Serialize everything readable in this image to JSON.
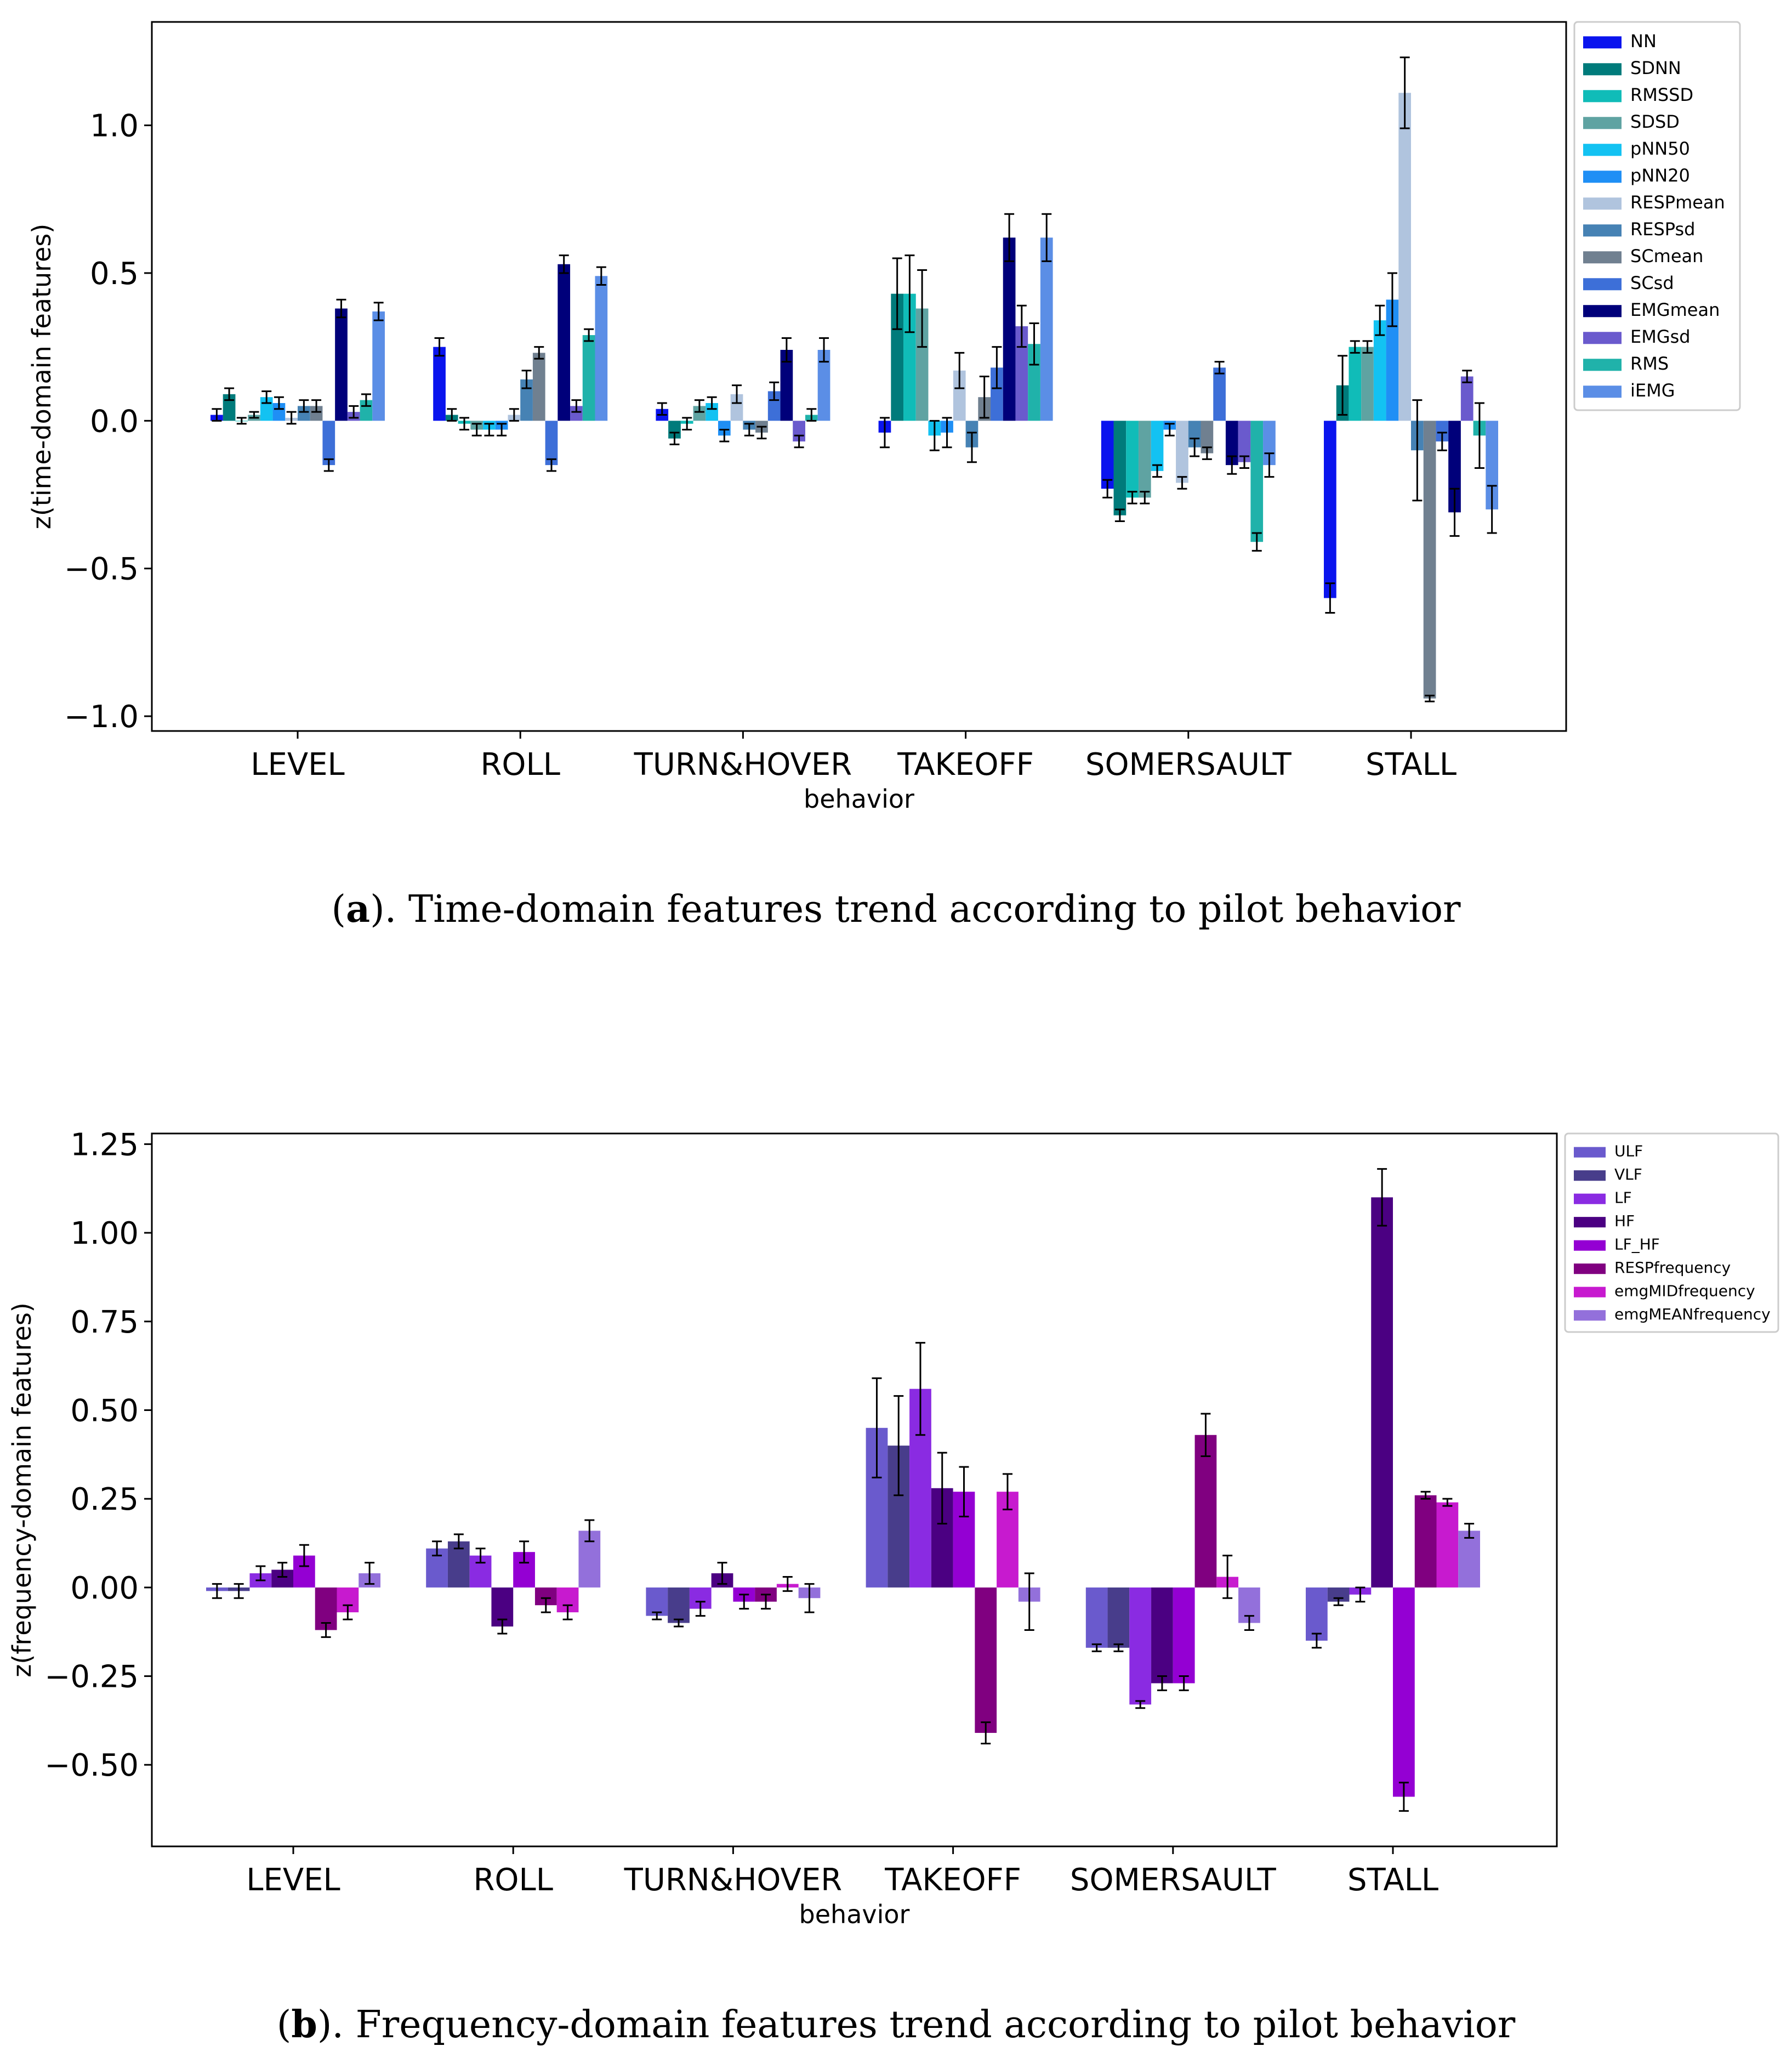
{
  "figures": {
    "a": {
      "label": "a",
      "caption": "). Time-domain features trend according to pilot behavior"
    },
    "b": {
      "label": "b",
      "caption": "). Frequency-domain features trend according to pilot behavior"
    }
  },
  "chart_data": [
    {
      "type": "bar",
      "title": "",
      "xlabel": "behavior",
      "ylabel": "z(time-domain features)",
      "ylim": [
        -1.05,
        1.35
      ],
      "yticks": [
        -1.0,
        -0.5,
        0.0,
        0.5,
        1.0
      ],
      "ytick_labels": [
        "−1.0",
        "−0.5",
        "0.0",
        "0.5",
        "1.0"
      ],
      "legend_position": "outside-right",
      "categories": [
        "LEVEL",
        "ROLL",
        "TURN&HOVER",
        "TAKEOFF",
        "SOMERSAULT",
        "STALL"
      ],
      "series": [
        {
          "name": "NN",
          "color": "#0a14ee",
          "values": [
            0.02,
            0.25,
            0.04,
            -0.04,
            -0.23,
            -0.6
          ],
          "errors": [
            0.02,
            0.03,
            0.02,
            0.05,
            0.03,
            0.05
          ]
        },
        {
          "name": "SDNN",
          "color": "#007b7b",
          "values": [
            0.09,
            0.02,
            -0.06,
            0.43,
            -0.32,
            0.12
          ],
          "errors": [
            0.02,
            0.02,
            0.02,
            0.12,
            0.02,
            0.1
          ]
        },
        {
          "name": "RMSSD",
          "color": "#10bcb8",
          "values": [
            0.0,
            -0.01,
            -0.01,
            0.43,
            -0.26,
            0.25
          ],
          "errors": [
            0.01,
            0.02,
            0.02,
            0.13,
            0.02,
            0.02
          ]
        },
        {
          "name": "SDSD",
          "color": "#5fa3a2",
          "values": [
            0.02,
            -0.03,
            0.05,
            0.38,
            -0.26,
            0.25
          ],
          "errors": [
            0.01,
            0.02,
            0.02,
            0.13,
            0.02,
            0.02
          ]
        },
        {
          "name": "pNN50",
          "color": "#13c2f2",
          "values": [
            0.08,
            -0.03,
            0.06,
            -0.05,
            -0.17,
            0.34
          ],
          "errors": [
            0.02,
            0.02,
            0.02,
            0.05,
            0.02,
            0.05
          ]
        },
        {
          "name": "pNN20",
          "color": "#1f8ff5",
          "values": [
            0.06,
            -0.03,
            -0.05,
            -0.04,
            -0.03,
            0.41
          ],
          "errors": [
            0.02,
            0.02,
            0.02,
            0.05,
            0.02,
            0.09
          ]
        },
        {
          "name": "RESPmean",
          "color": "#b0c4de",
          "values": [
            0.01,
            0.02,
            0.09,
            0.17,
            -0.21,
            1.11
          ],
          "errors": [
            0.02,
            0.02,
            0.03,
            0.06,
            0.02,
            0.12
          ]
        },
        {
          "name": "RESPsd",
          "color": "#4682b4",
          "values": [
            0.05,
            0.14,
            -0.03,
            -0.09,
            -0.09,
            -0.1
          ],
          "errors": [
            0.02,
            0.03,
            0.02,
            0.05,
            0.03,
            0.17
          ]
        },
        {
          "name": "SCmean",
          "color": "#708090",
          "values": [
            0.05,
            0.23,
            -0.04,
            0.08,
            -0.11,
            -0.94
          ],
          "errors": [
            0.02,
            0.02,
            0.02,
            0.07,
            0.02,
            0.01
          ]
        },
        {
          "name": "SCsd",
          "color": "#3d6fd8",
          "values": [
            -0.15,
            -0.15,
            0.1,
            0.18,
            0.18,
            -0.07
          ],
          "errors": [
            0.02,
            0.02,
            0.03,
            0.07,
            0.02,
            0.03
          ]
        },
        {
          "name": "EMGmean",
          "color": "#00007a",
          "values": [
            0.38,
            0.53,
            0.24,
            0.62,
            -0.15,
            -0.31
          ],
          "errors": [
            0.03,
            0.03,
            0.04,
            0.08,
            0.03,
            0.08
          ]
        },
        {
          "name": "EMGsd",
          "color": "#6a5acd",
          "values": [
            0.03,
            0.05,
            -0.07,
            0.32,
            -0.14,
            0.15
          ],
          "errors": [
            0.02,
            0.02,
            0.02,
            0.07,
            0.02,
            0.02
          ]
        },
        {
          "name": "RMS",
          "color": "#20b2aa",
          "values": [
            0.07,
            0.29,
            0.02,
            0.26,
            -0.41,
            -0.05
          ],
          "errors": [
            0.02,
            0.02,
            0.02,
            0.07,
            0.03,
            0.11
          ]
        },
        {
          "name": "iEMG",
          "color": "#5b8ee6",
          "values": [
            0.37,
            0.49,
            0.24,
            0.62,
            -0.15,
            -0.3
          ],
          "errors": [
            0.03,
            0.03,
            0.04,
            0.08,
            0.04,
            0.08
          ]
        }
      ]
    },
    {
      "type": "bar",
      "title": "",
      "xlabel": "behavior",
      "ylabel": "z(frequency-domain features)",
      "ylim": [
        -0.73,
        1.28
      ],
      "yticks": [
        -0.5,
        -0.25,
        0.0,
        0.25,
        0.5,
        0.75,
        1.0,
        1.25
      ],
      "ytick_labels": [
        "−0.50",
        "−0.25",
        "0.00",
        "0.25",
        "0.50",
        "0.75",
        "1.00",
        "1.25"
      ],
      "legend_position": "outside-right",
      "categories": [
        "LEVEL",
        "ROLL",
        "TURN&HOVER",
        "TAKEOFF",
        "SOMERSAULT",
        "STALL"
      ],
      "series": [
        {
          "name": "ULF",
          "color": "#6a5acd",
          "values": [
            -0.01,
            0.11,
            -0.08,
            0.45,
            -0.17,
            -0.15
          ],
          "errors": [
            0.02,
            0.02,
            0.01,
            0.14,
            0.01,
            0.02
          ]
        },
        {
          "name": "VLF",
          "color": "#483d8b",
          "values": [
            -0.01,
            0.13,
            -0.1,
            0.4,
            -0.17,
            -0.04
          ],
          "errors": [
            0.02,
            0.02,
            0.01,
            0.14,
            0.01,
            0.01
          ]
        },
        {
          "name": "LF",
          "color": "#8a2be2",
          "values": [
            0.04,
            0.09,
            -0.06,
            0.56,
            -0.33,
            -0.02
          ],
          "errors": [
            0.02,
            0.02,
            0.02,
            0.13,
            0.01,
            0.02
          ]
        },
        {
          "name": "HF",
          "color": "#4b0082",
          "values": [
            0.05,
            -0.11,
            0.04,
            0.28,
            -0.27,
            1.1
          ],
          "errors": [
            0.02,
            0.02,
            0.03,
            0.1,
            0.02,
            0.08
          ]
        },
        {
          "name": "LF_HF",
          "color": "#9400d3",
          "values": [
            0.09,
            0.1,
            -0.04,
            0.27,
            -0.27,
            -0.59
          ],
          "errors": [
            0.03,
            0.03,
            0.02,
            0.07,
            0.02,
            0.04
          ]
        },
        {
          "name": "RESPfrequency",
          "color": "#800080",
          "values": [
            -0.12,
            -0.05,
            -0.04,
            -0.41,
            0.43,
            0.26
          ],
          "errors": [
            0.02,
            0.02,
            0.02,
            0.03,
            0.06,
            0.01
          ]
        },
        {
          "name": "emgMIDfrequency",
          "color": "#c71acf",
          "values": [
            -0.07,
            -0.07,
            0.01,
            0.27,
            0.03,
            0.24
          ],
          "errors": [
            0.02,
            0.02,
            0.02,
            0.05,
            0.06,
            0.01
          ]
        },
        {
          "name": "emgMEANfrequency",
          "color": "#9370db",
          "values": [
            0.04,
            0.16,
            -0.03,
            -0.04,
            -0.1,
            0.16
          ],
          "errors": [
            0.03,
            0.03,
            0.04,
            0.08,
            0.02,
            0.02
          ]
        }
      ]
    }
  ]
}
